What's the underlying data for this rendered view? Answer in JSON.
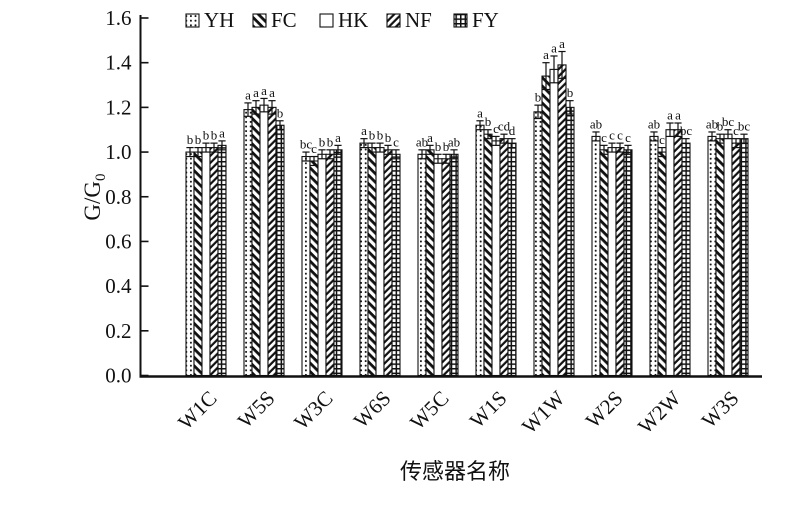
{
  "figure": {
    "background": "#ffffff",
    "ink_color": "#111111"
  },
  "chart_data": {
    "type": "bar",
    "title": "",
    "xlabel": "传感器名称",
    "ylabel_main": "G/G",
    "ylabel_sub": "0",
    "ylim": [
      0.0,
      1.6
    ],
    "ytick_step": 0.2,
    "yticks": [
      "0.0",
      "0.2",
      "0.4",
      "0.6",
      "0.8",
      "1.0",
      "1.2",
      "1.4",
      "1.6"
    ],
    "grid": "off",
    "legend_position": "top",
    "categories": [
      "W1C",
      "W5S",
      "W3C",
      "W6S",
      "W5C",
      "W1S",
      "W1W",
      "W2S",
      "W2W",
      "W3S"
    ],
    "series": [
      {
        "name": "YH",
        "pattern": "dots",
        "values": [
          1.0,
          1.19,
          0.98,
          1.04,
          0.99,
          1.12,
          1.18,
          1.07,
          1.07,
          1.07
        ],
        "errors": [
          0.02,
          0.03,
          0.02,
          0.02,
          0.02,
          0.02,
          0.03,
          0.02,
          0.02,
          0.02
        ],
        "letters": [
          "b",
          "a",
          "bc",
          "a",
          "ab",
          "a",
          "b",
          "ab",
          "ab",
          "ab"
        ]
      },
      {
        "name": "FC",
        "pattern": "diag-forward",
        "values": [
          1.0,
          1.2,
          0.96,
          1.02,
          1.01,
          1.08,
          1.34,
          1.01,
          1.0,
          1.06
        ],
        "errors": [
          0.02,
          0.03,
          0.02,
          0.02,
          0.02,
          0.02,
          0.06,
          0.02,
          0.02,
          0.02
        ],
        "letters": [
          "b",
          "a",
          "c",
          "b",
          "a",
          "b",
          "a",
          "c",
          "c",
          "b"
        ]
      },
      {
        "name": "HK",
        "pattern": "plain",
        "values": [
          1.02,
          1.21,
          0.99,
          1.02,
          0.97,
          1.05,
          1.37,
          1.02,
          1.1,
          1.08
        ],
        "errors": [
          0.02,
          0.03,
          0.02,
          0.02,
          0.02,
          0.02,
          0.06,
          0.02,
          0.03,
          0.02
        ],
        "letters": [
          "b",
          "a",
          "b",
          "b",
          "b",
          "c",
          "a",
          "c",
          "a",
          "bc"
        ]
      },
      {
        "name": "NF",
        "pattern": "diag-back",
        "values": [
          1.02,
          1.2,
          0.99,
          1.01,
          0.97,
          1.06,
          1.39,
          1.02,
          1.1,
          1.04
        ],
        "errors": [
          0.02,
          0.03,
          0.02,
          0.02,
          0.02,
          0.02,
          0.06,
          0.02,
          0.03,
          0.02
        ],
        "letters": [
          "b",
          "a",
          "b",
          "b",
          "b",
          "cd",
          "a",
          "c",
          "a",
          "c"
        ]
      },
      {
        "name": "FY",
        "pattern": "grid",
        "values": [
          1.03,
          1.12,
          1.01,
          0.99,
          0.99,
          1.04,
          1.2,
          1.01,
          1.04,
          1.06
        ],
        "errors": [
          0.02,
          0.02,
          0.02,
          0.02,
          0.02,
          0.02,
          0.03,
          0.02,
          0.02,
          0.02
        ],
        "letters": [
          "a",
          "b",
          "a",
          "c",
          "ab",
          "d",
          "b",
          "c",
          "bc",
          "bc"
        ]
      }
    ]
  }
}
